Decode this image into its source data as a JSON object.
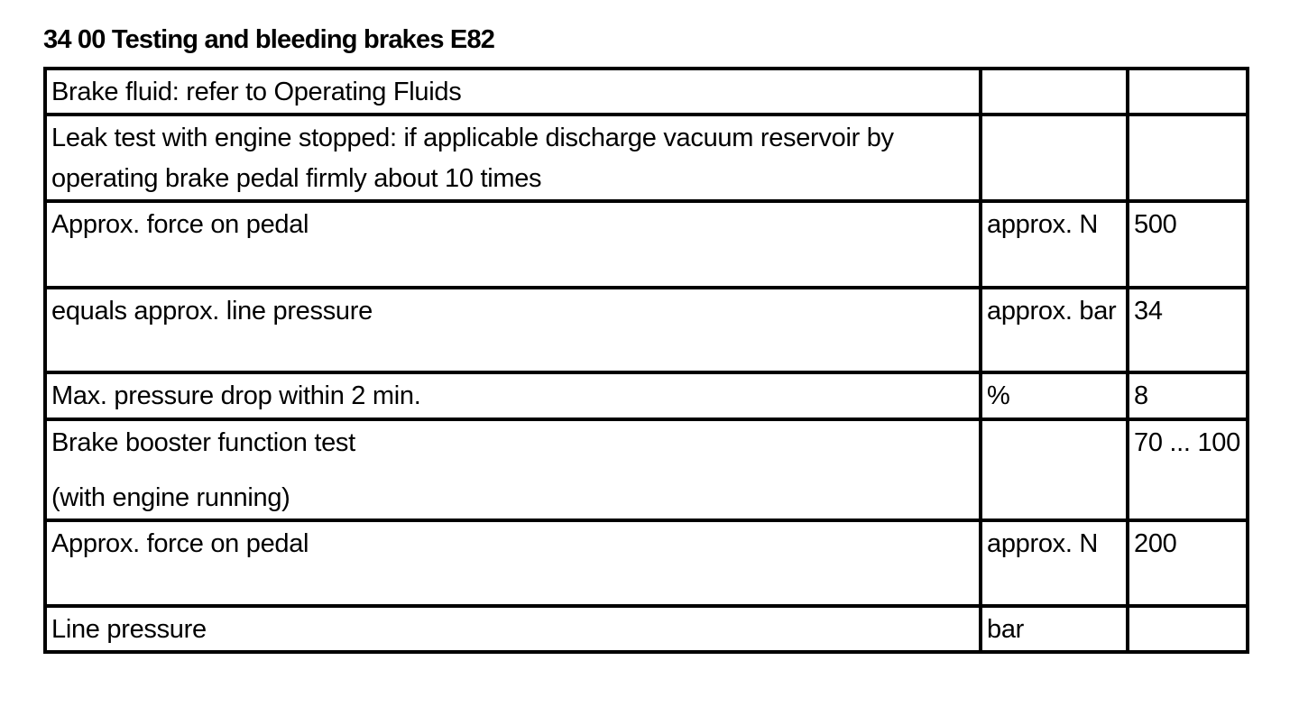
{
  "title": "34 00 Testing and bleeding brakes E82",
  "rows": [
    {
      "description": [
        "Brake fluid: refer to Operating Fluids"
      ],
      "unit": "",
      "value": ""
    },
    {
      "description": [
        "Leak test with engine stopped: if applicable discharge vacuum reservoir by operating brake pedal firmly about 10 times"
      ],
      "unit": "",
      "value": ""
    },
    {
      "description": [
        "Approx. force on pedal"
      ],
      "unit": "approx. N",
      "value": "500"
    },
    {
      "description": [
        "equals approx. line pressure"
      ],
      "unit": "approx. bar",
      "value": "34"
    },
    {
      "description": [
        "Max. pressure drop within 2 min."
      ],
      "unit": "%",
      "value": "8"
    },
    {
      "description": [
        "Brake booster function test",
        "(with engine running)"
      ],
      "unit": "",
      "value": "70 ... 100"
    },
    {
      "description": [
        "Approx. force on pedal"
      ],
      "unit": "approx. N",
      "value": "200"
    },
    {
      "description": [
        "Line pressure"
      ],
      "unit": "bar",
      "value": ""
    }
  ]
}
